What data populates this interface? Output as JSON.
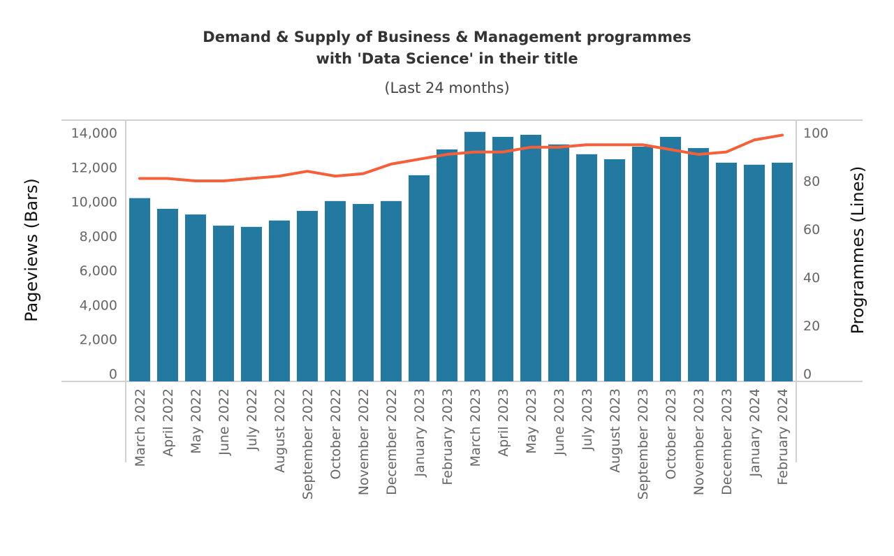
{
  "chart_data": {
    "type": "bar+line",
    "title_line1": "Demand & Supply of Business & Management programmes",
    "title_line2": "with 'Data Science' in their title",
    "subtitle": "(Last 24 months)",
    "ylabel_left": "Pageviews  (Bars)",
    "ylabel_right": "Programmes  (Lines)",
    "ylim_left": [
      0,
      14000
    ],
    "ylim_right": [
      0,
      100
    ],
    "yticks_left": [
      "0",
      "2,000",
      "4,000",
      "6,000",
      "8,000",
      "10,000",
      "12,000",
      "14,000"
    ],
    "yticks_right": [
      "0",
      "20",
      "40",
      "60",
      "80",
      "100"
    ],
    "grid": false,
    "colors": {
      "bars": "#23799f",
      "line": "#f5603a"
    },
    "categories": [
      "March 2022",
      "April 2022",
      "May 2022",
      "June 2022",
      "July 2022",
      "August 2022",
      "September 2022",
      "October 2022",
      "November 2022",
      "December 2022",
      "January 2023",
      "February 2023",
      "March 2023",
      "April 2023",
      "May 2023",
      "June 2023",
      "July 2023",
      "August 2023",
      "September 2023",
      "October 2023",
      "November 2023",
      "December 2023",
      "January 2024",
      "February 2024"
    ],
    "series": [
      {
        "type": "bar",
        "axis": "left",
        "values": [
          10200,
          9580,
          9250,
          8600,
          8530,
          8900,
          9460,
          10030,
          9860,
          10030,
          11530,
          13030,
          14050,
          13760,
          13880,
          13320,
          12750,
          12460,
          13190,
          13760,
          13110,
          12260,
          12140,
          12260
        ]
      },
      {
        "type": "line",
        "axis": "right",
        "values": [
          81,
          81,
          80,
          80,
          81,
          82,
          84,
          82,
          83,
          87,
          89,
          91,
          92,
          92,
          94,
          94,
          95,
          95,
          95,
          93,
          91,
          92,
          97,
          99
        ]
      }
    ]
  }
}
